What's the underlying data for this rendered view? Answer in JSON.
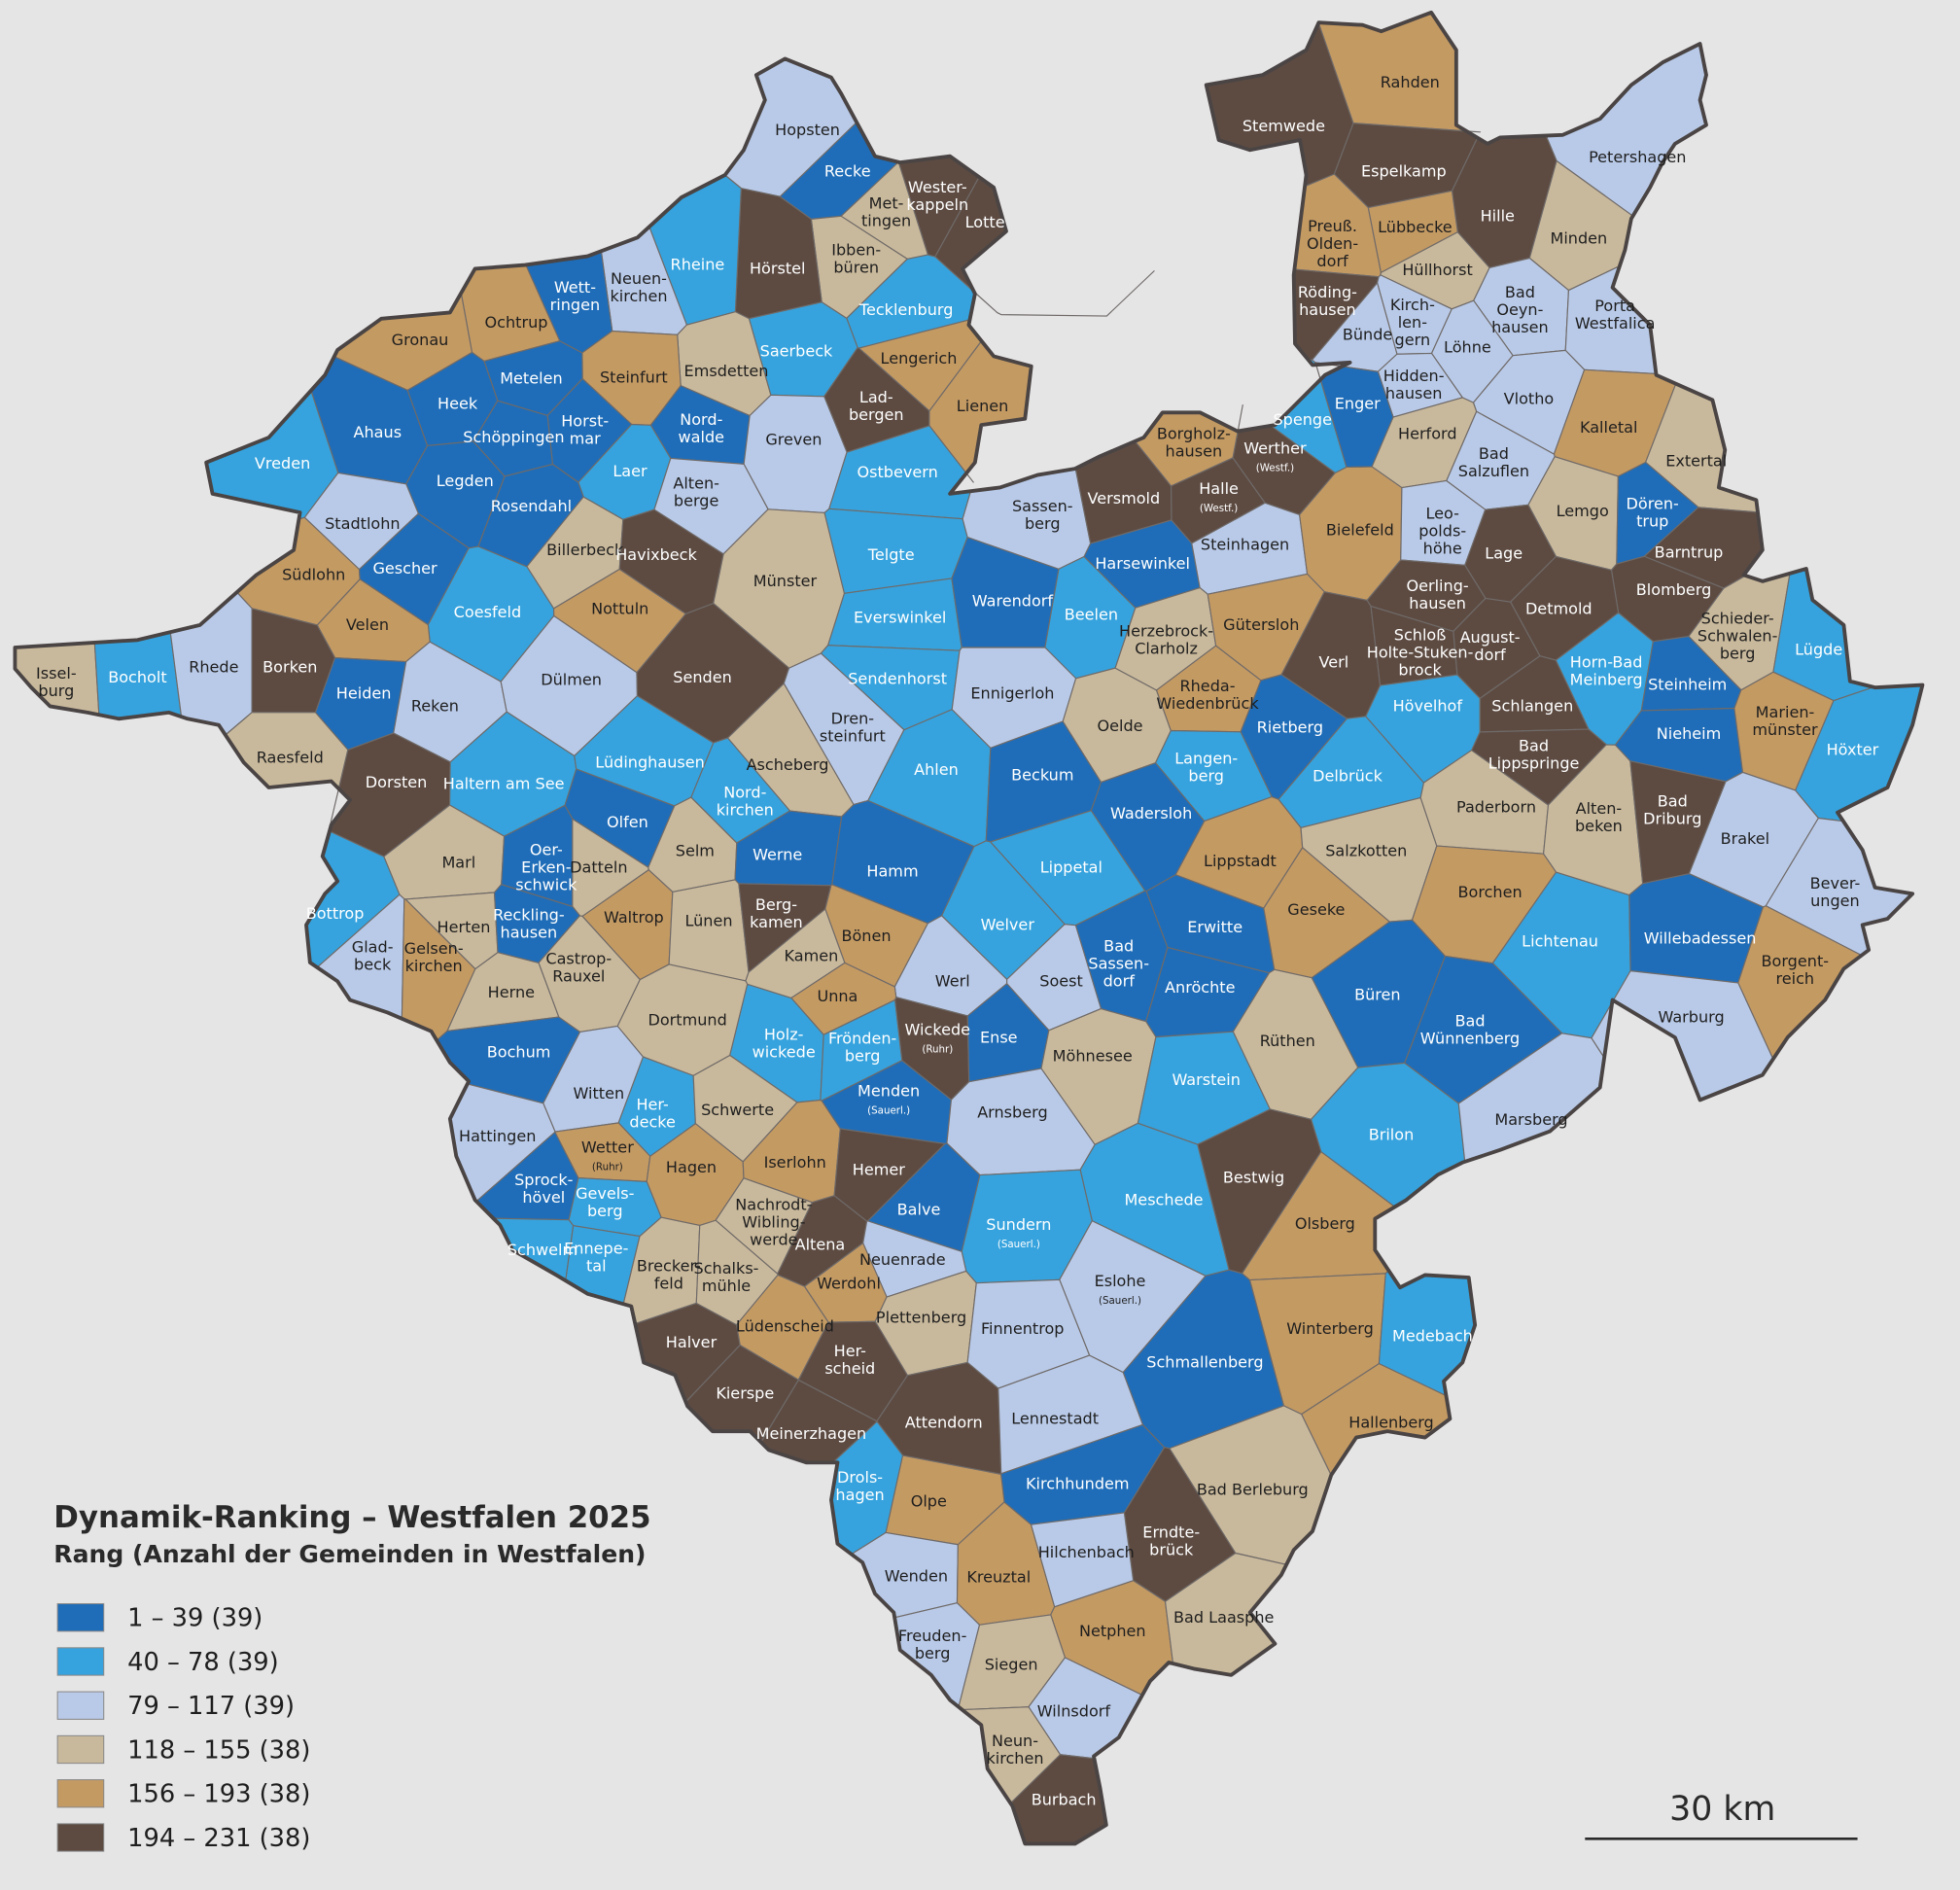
{
  "title": "Dynamik-Ranking – Westfalen 2025",
  "subtitle": "Rang (Anzahl der Gemeinden in Westfalen)",
  "legend": [
    {
      "label": "1 – 39 (39)",
      "color": "#1f6db8"
    },
    {
      "label": "40 – 78 (39)",
      "color": "#36a3de"
    },
    {
      "label": "79 – 117 (39)",
      "color": "#b9cae8"
    },
    {
      "label": "118 – 155 (38)",
      "color": "#c9b99c"
    },
    {
      "label": "156 – 193 (38)",
      "color": "#c49a63"
    },
    {
      "label": "194 – 231 (38)",
      "color": "#5d4b42"
    }
  ],
  "scale_label": "30 km",
  "municipalities": [
    {
      "name": "Hopsten",
      "class": 2
    },
    {
      "name": "Recke",
      "class": 0
    },
    {
      "name": "Wester-\nkappeln",
      "class": 5
    },
    {
      "name": "Met-\ntingen",
      "class": 3
    },
    {
      "name": "Lotte",
      "class": 5
    },
    {
      "name": "Ibben-\nbüren",
      "class": 3
    },
    {
      "name": "Hörstel",
      "class": 5
    },
    {
      "name": "Rheine",
      "class": 1
    },
    {
      "name": "Neuen-\nkirchen",
      "class": 2
    },
    {
      "name": "Wett-\nringen",
      "class": 0
    },
    {
      "name": "Tecklenburg",
      "class": 1
    },
    {
      "name": "Ochtrup",
      "class": 4
    },
    {
      "name": "Gronau",
      "class": 4
    },
    {
      "name": "Emsdetten",
      "class": 3
    },
    {
      "name": "Saerbeck",
      "class": 1
    },
    {
      "name": "Lengerich",
      "class": 4
    },
    {
      "name": "Steinfurt",
      "class": 4
    },
    {
      "name": "Metelen",
      "class": 0
    },
    {
      "name": "Heek",
      "class": 0
    },
    {
      "name": "Horst-\nmar",
      "class": 0
    },
    {
      "name": "Schöppingen",
      "class": 0
    },
    {
      "name": "Lad-\nbergen",
      "class": 5
    },
    {
      "name": "Lienen",
      "class": 4
    },
    {
      "name": "Nord-\nwalde",
      "class": 0
    },
    {
      "name": "Greven",
      "class": 2
    },
    {
      "name": "Ahaus",
      "class": 0
    },
    {
      "name": "Vreden",
      "class": 1
    },
    {
      "name": "Legden",
      "class": 0
    },
    {
      "name": "Laer",
      "class": 1
    },
    {
      "name": "Alten-\nberge",
      "class": 2
    },
    {
      "name": "Rosendahl",
      "class": 0
    },
    {
      "name": "Ostbevern",
      "class": 1
    },
    {
      "name": "Stadtlohn",
      "class": 2
    },
    {
      "name": "Billerbeck",
      "class": 3
    },
    {
      "name": "Havixbeck",
      "class": 5
    },
    {
      "name": "Münster",
      "class": 3
    },
    {
      "name": "Telgte",
      "class": 1
    },
    {
      "name": "Südlohn",
      "class": 4
    },
    {
      "name": "Gescher",
      "class": 0
    },
    {
      "name": "Coesfeld",
      "class": 1
    },
    {
      "name": "Nottuln",
      "class": 4
    },
    {
      "name": "Everswinkel",
      "class": 1
    },
    {
      "name": "Velen",
      "class": 4
    },
    {
      "name": "Warendorf",
      "class": 0
    },
    {
      "name": "Sassen-\nberg",
      "class": 2
    },
    {
      "name": "Versmold",
      "class": 5
    },
    {
      "name": "Borgholz-\nhausen",
      "class": 4
    },
    {
      "name": "Werther\n(Westf.)",
      "class": 5
    },
    {
      "name": "Halle\n(Westf.)",
      "class": 5
    },
    {
      "name": "Harsewinkel",
      "class": 0
    },
    {
      "name": "Steinhagen",
      "class": 2
    },
    {
      "name": "Bielefeld",
      "class": 4
    },
    {
      "name": "Beelen",
      "class": 1
    },
    {
      "name": "Herzebrock-\nClarholz",
      "class": 3
    },
    {
      "name": "Gütersloh",
      "class": 4
    },
    {
      "name": "Issel-\nburg",
      "class": 3
    },
    {
      "name": "Bocholt",
      "class": 1
    },
    {
      "name": "Rhede",
      "class": 2
    },
    {
      "name": "Borken",
      "class": 5
    },
    {
      "name": "Heiden",
      "class": 0
    },
    {
      "name": "Reken",
      "class": 2
    },
    {
      "name": "Dülmen",
      "class": 2
    },
    {
      "name": "Senden",
      "class": 5
    },
    {
      "name": "Sendenhorst",
      "class": 1
    },
    {
      "name": "Ennigerloh",
      "class": 2
    },
    {
      "name": "Dren-\nsteinfurt",
      "class": 2
    },
    {
      "name": "Raesfeld",
      "class": 3
    },
    {
      "name": "Dorsten",
      "class": 5
    },
    {
      "name": "Haltern am See",
      "class": 1
    },
    {
      "name": "Lüdinghausen",
      "class": 1
    },
    {
      "name": "Ascheberg",
      "class": 3
    },
    {
      "name": "Ahlen",
      "class": 1
    },
    {
      "name": "Beckum",
      "class": 0
    },
    {
      "name": "Oelde",
      "class": 3
    },
    {
      "name": "Rheda-\nWiedenbrück",
      "class": 4
    },
    {
      "name": "Rietberg",
      "class": 0
    },
    {
      "name": "Langen-\nberg",
      "class": 1
    },
    {
      "name": "Verl",
      "class": 5
    },
    {
      "name": "Schloß\nHolte-Stuken-\nbrock",
      "class": 5
    },
    {
      "name": "Hövelhof",
      "class": 1
    },
    {
      "name": "Delbrück",
      "class": 1
    },
    {
      "name": "Nord-\nkirchen",
      "class": 1
    },
    {
      "name": "Olfen",
      "class": 0
    },
    {
      "name": "Selm",
      "class": 3
    },
    {
      "name": "Marl",
      "class": 3
    },
    {
      "name": "Oer-\nErken-\nschwick",
      "class": 0
    },
    {
      "name": "Datteln",
      "class": 3
    },
    {
      "name": "Werne",
      "class": 0
    },
    {
      "name": "Hamm",
      "class": 0
    },
    {
      "name": "Wadersloh",
      "class": 0
    },
    {
      "name": "Lippetal",
      "class": 1
    },
    {
      "name": "Lippstadt",
      "class": 4
    },
    {
      "name": "Salzkotten",
      "class": 3
    },
    {
      "name": "Paderborn",
      "class": 3
    },
    {
      "name": "Bottrop",
      "class": 1
    },
    {
      "name": "Glad-\nbeck",
      "class": 2
    },
    {
      "name": "Herten",
      "class": 3
    },
    {
      "name": "Gelsen-\nkirchen",
      "class": 4
    },
    {
      "name": "Reckling-\nhausen",
      "class": 0
    },
    {
      "name": "Waltrop",
      "class": 4
    },
    {
      "name": "Lünen",
      "class": 3
    },
    {
      "name": "Berg-\nkamen",
      "class": 5
    },
    {
      "name": "Bönen",
      "class": 4
    },
    {
      "name": "Kamen",
      "class": 3
    },
    {
      "name": "Welver",
      "class": 1
    },
    {
      "name": "Bad\nSassen-\ndorf",
      "class": 0
    },
    {
      "name": "Erwitte",
      "class": 0
    },
    {
      "name": "Geseke",
      "class": 4
    },
    {
      "name": "Borchen",
      "class": 4
    },
    {
      "name": "Lichtenau",
      "class": 1
    },
    {
      "name": "Castrop-\nRauxel",
      "class": 3
    },
    {
      "name": "Herne",
      "class": 3
    },
    {
      "name": "Werl",
      "class": 2
    },
    {
      "name": "Soest",
      "class": 2
    },
    {
      "name": "Anröchte",
      "class": 0
    },
    {
      "name": "Unna",
      "class": 4
    },
    {
      "name": "Dortmund",
      "class": 3
    },
    {
      "name": "Büren",
      "class": 0
    },
    {
      "name": "Bad\nWünnenberg",
      "class": 0
    },
    {
      "name": "Holz-\nwickede",
      "class": 1
    },
    {
      "name": "Frönden-\nberg",
      "class": 1
    },
    {
      "name": "Wickede\n(Ruhr)",
      "class": 5
    },
    {
      "name": "Ense",
      "class": 0
    },
    {
      "name": "Möhnesee",
      "class": 3
    },
    {
      "name": "Rüthen",
      "class": 3
    },
    {
      "name": "Bochum",
      "class": 0
    },
    {
      "name": "Witten",
      "class": 2
    },
    {
      "name": "Her-\ndecke",
      "class": 1
    },
    {
      "name": "Schwerte",
      "class": 3
    },
    {
      "name": "Menden\n(Sauerl.)",
      "class": 0
    },
    {
      "name": "Arnsberg",
      "class": 2
    },
    {
      "name": "Warstein",
      "class": 1
    },
    {
      "name": "Brilon",
      "class": 1
    },
    {
      "name": "Marsberg",
      "class": 2
    },
    {
      "name": "Hattingen",
      "class": 2
    },
    {
      "name": "Wetter\n(Ruhr)",
      "class": 4
    },
    {
      "name": "Hagen",
      "class": 4
    },
    {
      "name": "Iserlohn",
      "class": 4
    },
    {
      "name": "Hemer",
      "class": 5
    },
    {
      "name": "Sprock-\nhövel",
      "class": 0
    },
    {
      "name": "Gevels-\nberg",
      "class": 1
    },
    {
      "name": "Balve",
      "class": 0
    },
    {
      "name": "Meschede",
      "class": 1
    },
    {
      "name": "Bestwig",
      "class": 5
    },
    {
      "name": "Olsberg",
      "class": 4
    },
    {
      "name": "Sundern\n(Sauerl.)",
      "class": 1
    },
    {
      "name": "Nachrodt-\nWibling-\nwerde",
      "class": 3
    },
    {
      "name": "Altena",
      "class": 5
    },
    {
      "name": "Schwelm",
      "class": 1
    },
    {
      "name": "Ennepe-\ntal",
      "class": 1
    },
    {
      "name": "Brecker-\nfeld",
      "class": 3
    },
    {
      "name": "Schalks-\nmühle",
      "class": 3
    },
    {
      "name": "Neuenrade",
      "class": 2
    },
    {
      "name": "Werdohl",
      "class": 4
    },
    {
      "name": "Eslohe\n(Sauerl.)",
      "class": 2
    },
    {
      "name": "Plettenberg",
      "class": 3
    },
    {
      "name": "Lüdenscheid",
      "class": 4
    },
    {
      "name": "Finnentrop",
      "class": 2
    },
    {
      "name": "Winterberg",
      "class": 4
    },
    {
      "name": "Medebach",
      "class": 1
    },
    {
      "name": "Halver",
      "class": 5
    },
    {
      "name": "Her-\nscheid",
      "class": 5
    },
    {
      "name": "Schmallenberg",
      "class": 0
    },
    {
      "name": "Kierspe",
      "class": 5
    },
    {
      "name": "Attendorn",
      "class": 5
    },
    {
      "name": "Lennestadt",
      "class": 2
    },
    {
      "name": "Hallenberg",
      "class": 4
    },
    {
      "name": "Meinerzhagen",
      "class": 5
    },
    {
      "name": "Kirchhundem",
      "class": 0
    },
    {
      "name": "Bad Berleburg",
      "class": 3
    },
    {
      "name": "Drols-\nhagen",
      "class": 1
    },
    {
      "name": "Olpe",
      "class": 4
    },
    {
      "name": "Erndte-\nbrück",
      "class": 5
    },
    {
      "name": "Hilchenbach",
      "class": 2
    },
    {
      "name": "Wenden",
      "class": 2
    },
    {
      "name": "Kreuztal",
      "class": 4
    },
    {
      "name": "Freuden-\nberg",
      "class": 2
    },
    {
      "name": "Netphen",
      "class": 4
    },
    {
      "name": "Bad Laasphe",
      "class": 3
    },
    {
      "name": "Siegen",
      "class": 3
    },
    {
      "name": "Wilnsdorf",
      "class": 2
    },
    {
      "name": "Neun-\nkirchen",
      "class": 3
    },
    {
      "name": "Burbach",
      "class": 5
    },
    {
      "name": "Stemwede",
      "class": 5
    },
    {
      "name": "Rahden",
      "class": 4
    },
    {
      "name": "Espelkamp",
      "class": 5
    },
    {
      "name": "Petershagen",
      "class": 2
    },
    {
      "name": "Hille",
      "class": 5
    },
    {
      "name": "Preuß.\nOlden-\ndorf",
      "class": 4
    },
    {
      "name": "Lübbecke",
      "class": 4
    },
    {
      "name": "Minden",
      "class": 3
    },
    {
      "name": "Hüllhorst",
      "class": 3
    },
    {
      "name": "Röding-\nhausen",
      "class": 5
    },
    {
      "name": "Kirch-\nlen-\ngern",
      "class": 2
    },
    {
      "name": "Bünde",
      "class": 2
    },
    {
      "name": "Bad\nOeyn-\nhausen",
      "class": 2
    },
    {
      "name": "Porta\nWestfalica",
      "class": 2
    },
    {
      "name": "Löhne",
      "class": 2
    },
    {
      "name": "Hidden-\nhausen",
      "class": 2
    },
    {
      "name": "Enger",
      "class": 0
    },
    {
      "name": "Spenge",
      "class": 1
    },
    {
      "name": "Vlotho",
      "class": 2
    },
    {
      "name": "Herford",
      "class": 3
    },
    {
      "name": "Kalletal",
      "class": 4
    },
    {
      "name": "Extertal",
      "class": 3
    },
    {
      "name": "Bad\nSalzuflen",
      "class": 2
    },
    {
      "name": "Leo-\npolds-\nhöhe",
      "class": 2
    },
    {
      "name": "Lemgo",
      "class": 3
    },
    {
      "name": "Dören-\ntrup",
      "class": 0
    },
    {
      "name": "Barntrup",
      "class": 5
    },
    {
      "name": "Lage",
      "class": 5
    },
    {
      "name": "Oerling-\nhausen",
      "class": 5
    },
    {
      "name": "Blomberg",
      "class": 5
    },
    {
      "name": "Detmold",
      "class": 5
    },
    {
      "name": "August-\ndorf",
      "class": 5
    },
    {
      "name": "Schieder-\nSchwalen-\nberg",
      "class": 3
    },
    {
      "name": "Lügde",
      "class": 1
    },
    {
      "name": "Horn-Bad\nMeinberg",
      "class": 1
    },
    {
      "name": "Steinheim",
      "class": 0
    },
    {
      "name": "Schlangen",
      "class": 5
    },
    {
      "name": "Nieheim",
      "class": 0
    },
    {
      "name": "Marien-\nmünster",
      "class": 4
    },
    {
      "name": "Höxter",
      "class": 1
    },
    {
      "name": "Bad\nLippspringe",
      "class": 5
    },
    {
      "name": "Alten-\nbeken",
      "class": 3
    },
    {
      "name": "Bad\nDriburg",
      "class": 5
    },
    {
      "name": "Brakel",
      "class": 2
    },
    {
      "name": "Bever-\nungen",
      "class": 2
    },
    {
      "name": "Willebadessen",
      "class": 0
    },
    {
      "name": "Borgent-\nreich",
      "class": 4
    },
    {
      "name": "Warburg",
      "class": 2
    }
  ]
}
